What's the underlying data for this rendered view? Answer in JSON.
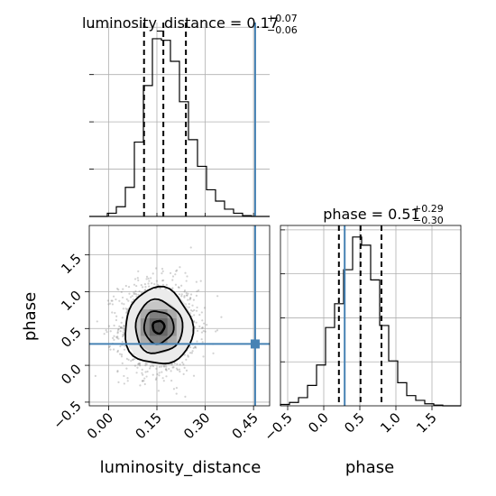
{
  "chart_data": {
    "type": "corner",
    "parameters": [
      "luminosity_distance",
      "phase"
    ],
    "grid": true,
    "colors": {
      "truth": "#4682b4",
      "hist": "#000000",
      "grid": "#b0b0b0",
      "points": "#7f7f7f"
    },
    "titles": {
      "luminosity_distance": {
        "prefix": "luminosity_distance = ",
        "median": "0.17",
        "plus": "+0.07",
        "minus": "−0.06"
      },
      "phase": {
        "prefix": "phase = ",
        "median": "0.51",
        "plus": "+0.29",
        "minus": "−0.30"
      }
    },
    "truth": {
      "luminosity_distance": 0.455,
      "phase": 0.29
    },
    "luminosity_distance": {
      "xlabel": "luminosity_distance",
      "xlim": [
        -0.06,
        0.5
      ],
      "ticks": [
        0.0,
        0.15,
        0.3,
        0.45
      ],
      "tick_labels": [
        "0.00",
        "0.15",
        "0.30",
        "0.45"
      ],
      "quantiles": [
        0.11,
        0.17,
        0.24
      ],
      "hist_edges": [
        -0.06,
        -0.032,
        -0.004,
        0.024,
        0.052,
        0.08,
        0.108,
        0.136,
        0.164,
        0.192,
        0.22,
        0.248,
        0.276,
        0.304,
        0.332,
        0.36,
        0.388,
        0.416,
        0.444,
        0.472,
        0.5
      ],
      "hist_counts": [
        0,
        0,
        4,
        12,
        36,
        92,
        162,
        220,
        218,
        192,
        142,
        95,
        62,
        33,
        19,
        9,
        4,
        1,
        0,
        0
      ],
      "ylim": [
        0,
        240
      ]
    },
    "phase": {
      "xlabel": "phase",
      "ylabel": "phase",
      "xlim": [
        -0.6,
        1.9
      ],
      "ticks": [
        -0.5,
        0.0,
        0.5,
        1.0,
        1.5
      ],
      "tick_labels": [
        "−0.5",
        "0.0",
        "0.5",
        "1.0",
        "1.5"
      ],
      "ylim": [
        -0.55,
        1.9
      ],
      "yticks": [
        -0.5,
        0.0,
        0.5,
        1.0,
        1.5
      ],
      "quantiles": [
        0.21,
        0.51,
        0.8
      ],
      "hist_edges": [
        -0.6,
        -0.475,
        -0.35,
        -0.225,
        -0.1,
        0.025,
        0.15,
        0.275,
        0.4,
        0.525,
        0.65,
        0.775,
        0.9,
        1.025,
        1.15,
        1.275,
        1.4,
        1.525,
        1.65,
        1.775,
        1.9
      ],
      "hist_counts": [
        2,
        5,
        12,
        30,
        60,
        115,
        150,
        200,
        248,
        236,
        185,
        118,
        66,
        34,
        15,
        8,
        3,
        1,
        0,
        0
      ],
      "ylim_hist": [
        0,
        265
      ]
    },
    "density_2d": {
      "center": [
        0.155,
        0.52
      ],
      "spread": [
        0.058,
        0.3
      ],
      "contours": [
        {
          "rx": 0.018,
          "ry": 0.085
        },
        {
          "rx": 0.046,
          "ry": 0.22
        },
        {
          "rx": 0.073,
          "ry": 0.36
        },
        {
          "rx": 0.105,
          "ry": 0.52
        }
      ]
    }
  }
}
